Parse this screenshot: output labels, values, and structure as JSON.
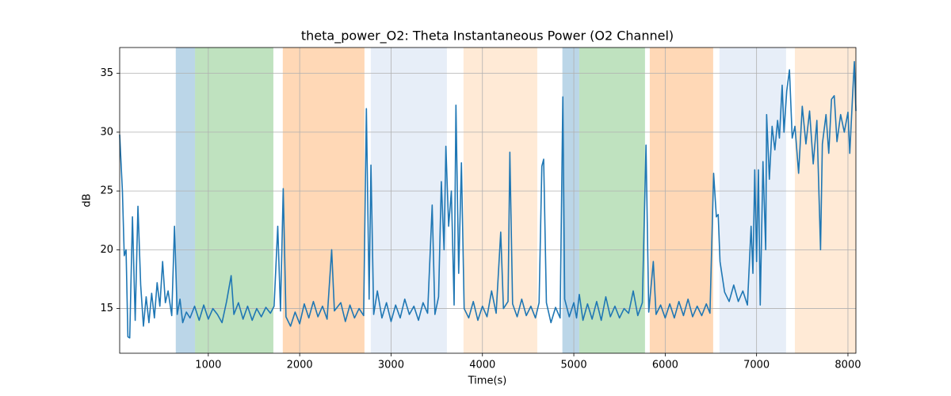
{
  "chart_data": {
    "type": "line",
    "title": "theta_power_O2: Theta Instantaneous Power (O2 Channel)",
    "x_label": "Time(s)",
    "y_label": "dB",
    "xlim": [
      30,
      8087
    ],
    "ylim": [
      11.2,
      37.2
    ],
    "xticks": [
      1000,
      2000,
      3000,
      4000,
      5000,
      6000,
      7000,
      8000
    ],
    "yticks": [
      15,
      20,
      25,
      30,
      35
    ],
    "grid": true,
    "spans": [
      {
        "start": 644,
        "end": 855,
        "color": "rgba(31,119,180,0.3)"
      },
      {
        "start": 855,
        "end": 1712,
        "color": "rgba(44,160,44,0.3)"
      },
      {
        "start": 1815,
        "end": 2709,
        "color": "rgba(255,127,14,0.3)"
      },
      {
        "start": 2778,
        "end": 3611,
        "color": "rgba(174,199,232,0.3)"
      },
      {
        "start": 3793,
        "end": 4600,
        "color": "rgba(255,187,120,0.3)"
      },
      {
        "start": 4875,
        "end": 5059,
        "color": "rgba(31,119,180,0.3)"
      },
      {
        "start": 5059,
        "end": 5779,
        "color": "rgba(44,160,44,0.3)"
      },
      {
        "start": 5831,
        "end": 6525,
        "color": "rgba(255,127,14,0.3)"
      },
      {
        "start": 6594,
        "end": 7323,
        "color": "rgba(174,199,232,0.3)"
      },
      {
        "start": 7419,
        "end": 8087,
        "color": "rgba(255,187,120,0.3)"
      }
    ],
    "x": [
      30,
      60,
      80,
      100,
      120,
      140,
      170,
      200,
      230,
      260,
      290,
      320,
      350,
      380,
      410,
      440,
      470,
      500,
      530,
      560,
      600,
      630,
      660,
      690,
      720,
      760,
      800,
      850,
      900,
      950,
      1000,
      1050,
      1100,
      1150,
      1200,
      1250,
      1280,
      1330,
      1380,
      1430,
      1480,
      1530,
      1580,
      1630,
      1680,
      1720,
      1760,
      1790,
      1820,
      1850,
      1900,
      1950,
      2000,
      2050,
      2100,
      2150,
      2200,
      2250,
      2300,
      2350,
      2380,
      2450,
      2500,
      2550,
      2600,
      2650,
      2700,
      2730,
      2760,
      2780,
      2810,
      2850,
      2900,
      2950,
      3000,
      3050,
      3100,
      3150,
      3200,
      3250,
      3300,
      3350,
      3400,
      3450,
      3480,
      3520,
      3550,
      3580,
      3600,
      3630,
      3660,
      3690,
      3710,
      3740,
      3770,
      3800,
      3850,
      3900,
      3950,
      4000,
      4050,
      4100,
      4150,
      4200,
      4230,
      4280,
      4300,
      4330,
      4380,
      4430,
      4480,
      4530,
      4580,
      4620,
      4650,
      4670,
      4700,
      4750,
      4800,
      4850,
      4880,
      4900,
      4950,
      5000,
      5030,
      5060,
      5100,
      5150,
      5200,
      5250,
      5300,
      5350,
      5400,
      5450,
      5500,
      5550,
      5600,
      5650,
      5700,
      5750,
      5790,
      5820,
      5870,
      5900,
      5950,
      6000,
      6050,
      6100,
      6150,
      6200,
      6250,
      6300,
      6350,
      6400,
      6450,
      6490,
      6530,
      6560,
      6580,
      6600,
      6650,
      6700,
      6750,
      6800,
      6850,
      6900,
      6940,
      6960,
      6980,
      7000,
      7020,
      7040,
      7070,
      7100,
      7110,
      7140,
      7170,
      7200,
      7230,
      7250,
      7280,
      7300,
      7330,
      7360,
      7390,
      7420,
      7460,
      7500,
      7540,
      7580,
      7620,
      7660,
      7700,
      7720,
      7760,
      7790,
      7820,
      7850,
      7880,
      7920,
      7960,
      8000,
      8020,
      8050,
      8070,
      8087
    ],
    "series": [
      {
        "color": "#1f77b4",
        "values": [
          29.8,
          25,
          19.5,
          20,
          12.6,
          12.5,
          22.8,
          14,
          23.7,
          17,
          13.5,
          16,
          13.8,
          16.3,
          14.2,
          17.2,
          15.2,
          19,
          15.5,
          16.5,
          14.4,
          22,
          14.5,
          15.8,
          13.8,
          14.7,
          14.2,
          15.2,
          14,
          15.3,
          14.1,
          15,
          14.5,
          13.8,
          15.6,
          17.8,
          14.5,
          15.5,
          14.1,
          15.2,
          14,
          15,
          14.3,
          15.1,
          14.6,
          15.2,
          22,
          14.8,
          25.2,
          14.3,
          13.5,
          14.7,
          13.7,
          15.4,
          14.2,
          15.6,
          14.3,
          15.2,
          14.1,
          20,
          14.8,
          15.5,
          13.9,
          15.3,
          14.2,
          15,
          14.4,
          32,
          15.8,
          27.2,
          14.5,
          16.5,
          14.2,
          15.5,
          13.9,
          15.3,
          14.2,
          15.8,
          14.5,
          15.2,
          14,
          15.5,
          14.6,
          23.8,
          14.5,
          16,
          25.8,
          20,
          28.8,
          22,
          25,
          15.3,
          32.3,
          18,
          27.4,
          15,
          14.2,
          15.6,
          14,
          15.2,
          14.3,
          16.5,
          14.6,
          21.5,
          15,
          15.6,
          28.3,
          15.4,
          14.3,
          15.8,
          14.4,
          15.2,
          14.2,
          15.5,
          27.1,
          27.7,
          15.5,
          13.8,
          15.1,
          14.2,
          33,
          15.8,
          14.3,
          15.5,
          14.2,
          16.2,
          14,
          15.4,
          14.1,
          15.6,
          14,
          16,
          14.3,
          15.2,
          14.2,
          15,
          14.6,
          16.5,
          14.4,
          15.5,
          28.9,
          14.7,
          19,
          14.5,
          15.3,
          14.2,
          15.4,
          14.2,
          15.6,
          14.4,
          15.8,
          14.3,
          15.2,
          14.4,
          15.4,
          14.6,
          26.5,
          22.8,
          23,
          19,
          16.4,
          15.6,
          17,
          15.6,
          16.5,
          15.3,
          22,
          18,
          26.8,
          19,
          26.8,
          15.3,
          27.5,
          20,
          31.5,
          26,
          30.5,
          28.5,
          31,
          29.5,
          34,
          30,
          33.5,
          35.3,
          29.5,
          30.5,
          26.5,
          32.2,
          29,
          31.8,
          27.3,
          31,
          20,
          29,
          31.5,
          28.2,
          32.8,
          33.1,
          29.2,
          31.5,
          30,
          31.7,
          28.2,
          33,
          36,
          31.8
        ]
      }
    ]
  }
}
